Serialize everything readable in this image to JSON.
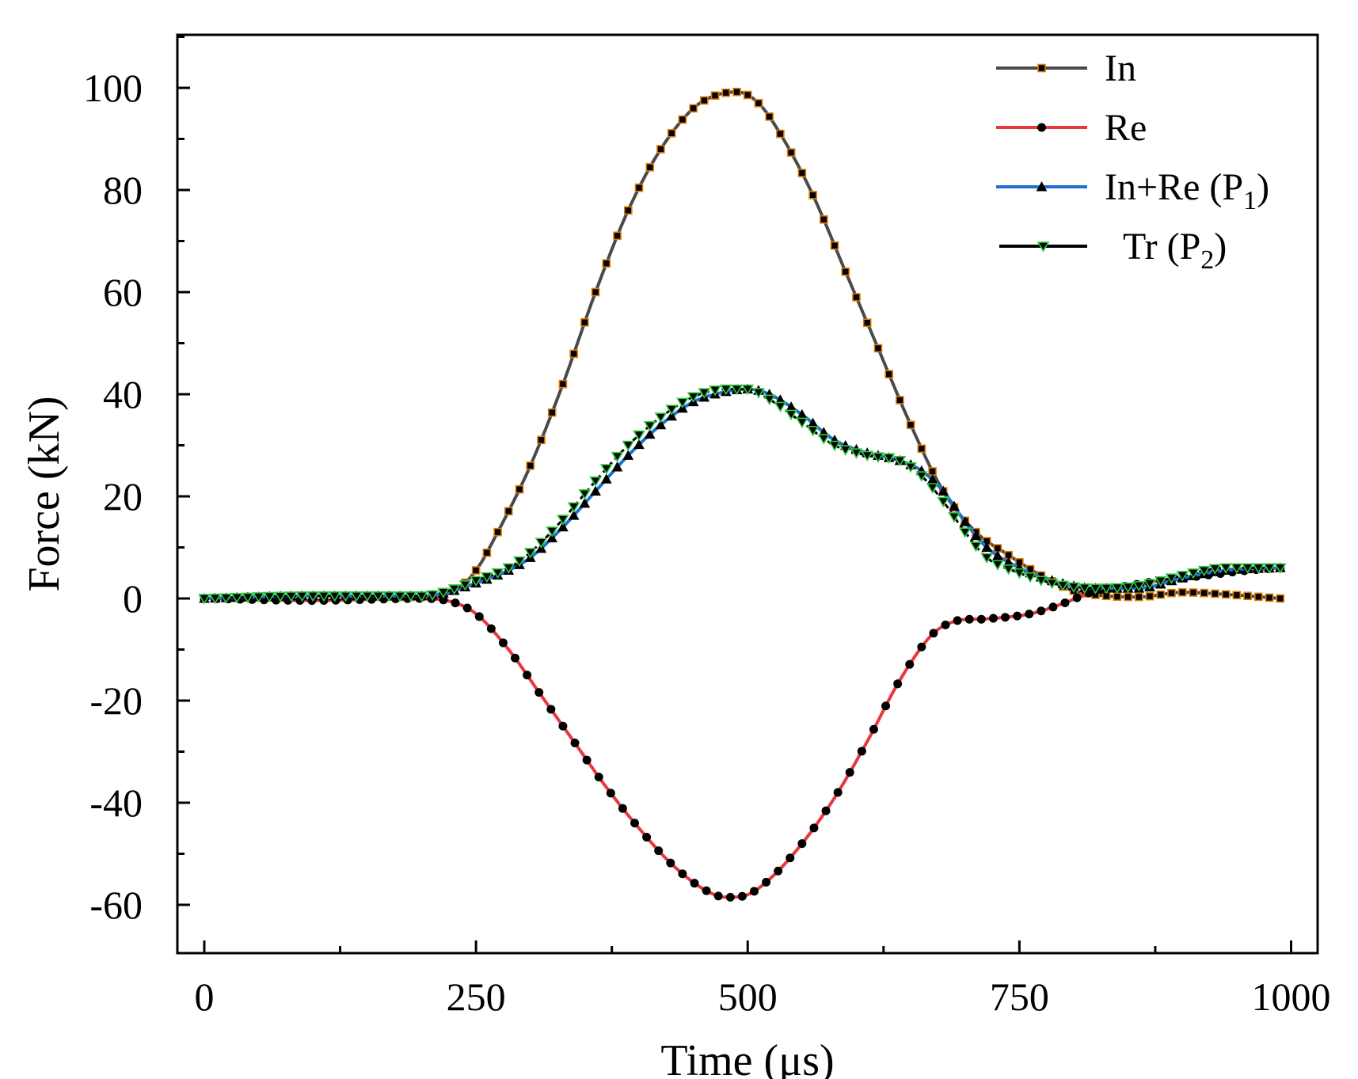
{
  "chart_data": {
    "type": "line",
    "title": "",
    "xlabel": "Time (μs)",
    "ylabel": "Force (kN)",
    "xlim": [
      -25,
      1025
    ],
    "ylim": [
      -70,
      110
    ],
    "xticks": [
      0,
      250,
      500,
      750,
      1000
    ],
    "yticks": [
      -60,
      -40,
      -20,
      0,
      20,
      40,
      60,
      80,
      100
    ],
    "grid": false,
    "legend_position": "top-right",
    "series": [
      {
        "name": "In",
        "line_color": "#4a4a4a",
        "marker": "square",
        "marker_fill": "#000000",
        "marker_edge": "#e07b00",
        "x": [
          0,
          100,
          200,
          230,
          250,
          270,
          300,
          330,
          360,
          390,
          420,
          450,
          470,
          490,
          510,
          530,
          560,
          590,
          620,
          650,
          680,
          710,
          740,
          770,
          800,
          830,
          860,
          900,
          940,
          990
        ],
        "y": [
          0,
          0.5,
          0.3,
          1.5,
          5.5,
          13,
          26,
          42,
          60,
          76,
          88,
          96,
          98.5,
          99.2,
          97,
          91,
          79,
          64,
          49,
          34,
          21,
          13,
          8.5,
          4.5,
          1.5,
          0.5,
          0.3,
          1.2,
          0.8,
          0
        ]
      },
      {
        "name": "Re",
        "line_color": "#e8383d",
        "marker": "circle",
        "marker_fill": "#000000",
        "marker_edge": "#000000",
        "x": [
          0,
          100,
          200,
          230,
          250,
          280,
          310,
          340,
          370,
          400,
          430,
          460,
          480,
          500,
          520,
          550,
          580,
          610,
          640,
          670,
          690,
          720,
          760,
          790,
          820,
          850,
          880,
          920,
          960,
          990
        ],
        "y": [
          0,
          -0.4,
          0,
          -0.8,
          -3,
          -10,
          -19,
          -28,
          -37,
          -45,
          -52,
          -57,
          -58.5,
          -58,
          -55,
          -48,
          -39,
          -28,
          -16,
          -7,
          -4.5,
          -4,
          -3,
          -1,
          1.5,
          2.5,
          3.5,
          4.5,
          5.5,
          6
        ]
      },
      {
        "name": "In+Re (P1)",
        "label_main": "In+Re (P",
        "label_sub": "1",
        "label_end": ")",
        "line_color": "#1f6fd4",
        "marker": "triangle-up",
        "marker_fill": "#000000",
        "marker_edge": "#000000",
        "x": [
          0,
          100,
          200,
          220,
          250,
          280,
          300,
          330,
          360,
          390,
          420,
          450,
          480,
          500,
          520,
          550,
          580,
          610,
          640,
          660,
          680,
          700,
          720,
          750,
          780,
          820,
          860,
          900,
          940,
          990
        ],
        "y": [
          0,
          0.5,
          0.5,
          1,
          3,
          5.5,
          8,
          14,
          21,
          28,
          34,
          38.5,
          40.5,
          41,
          40,
          36,
          31,
          28.5,
          27,
          25,
          21,
          15,
          10,
          6,
          3.5,
          2,
          2,
          4,
          5.5,
          6
        ]
      },
      {
        "name": "Tr (P2)",
        "label_main": "Tr (P",
        "label_sub": "2",
        "label_end": ")",
        "line_color": "#000000",
        "marker": "triangle-down",
        "marker_fill": "#000000",
        "marker_edge": "#2ecc40",
        "x": [
          0,
          100,
          200,
          220,
          250,
          280,
          300,
          330,
          360,
          390,
          420,
          450,
          480,
          500,
          520,
          550,
          580,
          610,
          640,
          660,
          680,
          700,
          720,
          750,
          780,
          820,
          860,
          900,
          940,
          990
        ],
        "y": [
          0,
          0.5,
          0.5,
          1.2,
          3.5,
          6,
          9,
          15.5,
          23,
          30,
          35.5,
          39.5,
          41,
          41,
          39,
          34.5,
          30,
          28,
          27,
          24,
          19,
          13,
          8,
          5,
          3,
          2,
          2.5,
          4.5,
          6,
          6
        ]
      }
    ]
  }
}
